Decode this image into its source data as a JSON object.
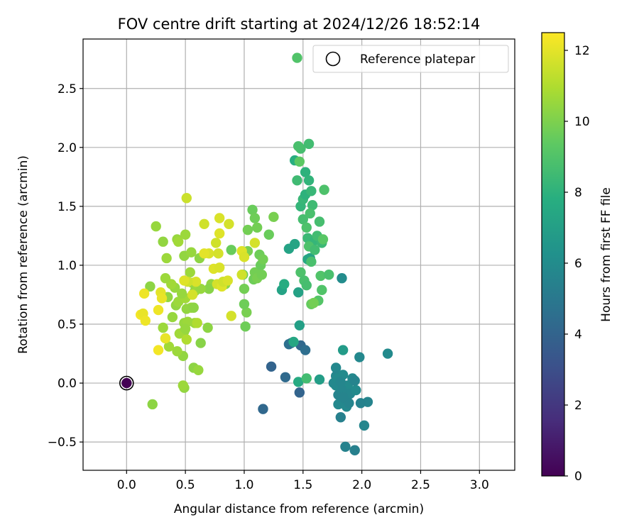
{
  "chart_data": {
    "type": "scatter",
    "title": "FOV centre drift starting at 2024/12/26 18:52:14",
    "xlabel": "Angular distance from reference (arcmin)",
    "ylabel": "Rotation from reference (arcmin)",
    "xlim": [
      -0.37,
      3.3
    ],
    "ylim": [
      -0.74,
      2.92
    ],
    "xticks": [
      "0.0",
      "0.5",
      "1.0",
      "1.5",
      "2.0",
      "2.5",
      "3.0"
    ],
    "xtick_values": [
      0.0,
      0.5,
      1.0,
      1.5,
      2.0,
      2.5,
      3.0
    ],
    "yticks": [
      "−0.5",
      "0.0",
      "0.5",
      "1.0",
      "1.5",
      "2.0",
      "2.5"
    ],
    "ytick_values": [
      -0.5,
      0.0,
      0.5,
      1.0,
      1.5,
      2.0,
      2.5
    ],
    "grid": true,
    "legend": {
      "placement": "top-right",
      "entries": [
        "Reference platepar"
      ]
    },
    "colormap": "viridis",
    "colorbar": {
      "label": "Hours from first FF file",
      "range": [
        0,
        12.5
      ],
      "ticks": [
        "0",
        "2",
        "4",
        "6",
        "8",
        "10",
        "12"
      ],
      "tick_values": [
        0,
        2,
        4,
        6,
        8,
        10,
        12
      ]
    },
    "reference_point": {
      "x": 0.0,
      "y": 0.0
    },
    "points": [
      {
        "x": 1.16,
        "y": -0.22,
        "h": 4.2
      },
      {
        "x": 1.23,
        "y": 0.14,
        "h": 4.0
      },
      {
        "x": 1.35,
        "y": 0.05,
        "h": 4.3
      },
      {
        "x": 1.47,
        "y": -0.08,
        "h": 4.0
      },
      {
        "x": 1.4,
        "y": 0.34,
        "h": 4.4
      },
      {
        "x": 1.48,
        "y": 0.32,
        "h": 4.2
      },
      {
        "x": 1.52,
        "y": 0.28,
        "h": 4.5
      },
      {
        "x": 1.38,
        "y": 0.33,
        "h": 4.6
      },
      {
        "x": 1.86,
        "y": -0.54,
        "h": 5.5
      },
      {
        "x": 1.94,
        "y": -0.57,
        "h": 5.4
      },
      {
        "x": 2.02,
        "y": -0.36,
        "h": 5.7
      },
      {
        "x": 1.98,
        "y": 0.22,
        "h": 5.8
      },
      {
        "x": 2.22,
        "y": 0.25,
        "h": 5.9
      },
      {
        "x": 2.05,
        "y": -0.16,
        "h": 5.6
      },
      {
        "x": 1.99,
        "y": -0.17,
        "h": 5.5
      },
      {
        "x": 1.82,
        "y": -0.29,
        "h": 5.4
      },
      {
        "x": 1.78,
        "y": 0.13,
        "h": 5.8
      },
      {
        "x": 1.78,
        "y": 0.06,
        "h": 5.7
      },
      {
        "x": 1.78,
        "y": -0.02,
        "h": 5.9
      },
      {
        "x": 1.8,
        "y": -0.1,
        "h": 5.6
      },
      {
        "x": 1.8,
        "y": -0.18,
        "h": 5.8
      },
      {
        "x": 1.84,
        "y": 0.07,
        "h": 5.9
      },
      {
        "x": 1.85,
        "y": -0.05,
        "h": 5.7
      },
      {
        "x": 1.86,
        "y": -0.14,
        "h": 5.6
      },
      {
        "x": 1.87,
        "y": -0.2,
        "h": 5.8
      },
      {
        "x": 1.88,
        "y": -0.02,
        "h": 5.9
      },
      {
        "x": 1.9,
        "y": -0.09,
        "h": 5.7
      },
      {
        "x": 1.92,
        "y": 0.04,
        "h": 5.8
      },
      {
        "x": 1.94,
        "y": 0.02,
        "h": 5.6
      },
      {
        "x": 1.95,
        "y": -0.06,
        "h": 5.9
      },
      {
        "x": 1.83,
        "y": -0.06,
        "h": 5.7
      },
      {
        "x": 1.89,
        "y": -0.17,
        "h": 5.6
      },
      {
        "x": 1.76,
        "y": 0.0,
        "h": 5.8
      },
      {
        "x": 1.79,
        "y": 0.04,
        "h": 5.9
      },
      {
        "x": 1.82,
        "y": 0.01,
        "h": 5.7
      },
      {
        "x": 1.84,
        "y": -0.12,
        "h": 5.6
      },
      {
        "x": 1.83,
        "y": 0.89,
        "h": 6.0
      },
      {
        "x": 1.84,
        "y": 0.28,
        "h": 6.8
      },
      {
        "x": 1.64,
        "y": 0.03,
        "h": 6.9
      },
      {
        "x": 1.47,
        "y": 0.49,
        "h": 7.0
      },
      {
        "x": 1.32,
        "y": 0.79,
        "h": 7.2
      },
      {
        "x": 1.46,
        "y": 0.77,
        "h": 7.1
      },
      {
        "x": 1.43,
        "y": 1.18,
        "h": 7.3
      },
      {
        "x": 1.38,
        "y": 1.14,
        "h": 7.2
      },
      {
        "x": 1.54,
        "y": 1.05,
        "h": 7.5
      },
      {
        "x": 1.56,
        "y": 1.06,
        "h": 7.3
      },
      {
        "x": 1.42,
        "y": 0.35,
        "h": 7.4
      },
      {
        "x": 1.46,
        "y": 0.01,
        "h": 7.6
      },
      {
        "x": 1.43,
        "y": 1.89,
        "h": 7.8
      },
      {
        "x": 1.34,
        "y": 0.84,
        "h": 7.7
      },
      {
        "x": 1.52,
        "y": 1.79,
        "h": 8.0
      },
      {
        "x": 1.55,
        "y": 1.72,
        "h": 8.1
      },
      {
        "x": 1.48,
        "y": 1.5,
        "h": 8.2
      },
      {
        "x": 1.5,
        "y": 1.56,
        "h": 8.3
      },
      {
        "x": 1.52,
        "y": 1.6,
        "h": 8.0
      },
      {
        "x": 1.54,
        "y": 1.23,
        "h": 8.4
      },
      {
        "x": 1.57,
        "y": 1.63,
        "h": 8.3
      },
      {
        "x": 1.58,
        "y": 1.51,
        "h": 8.5
      },
      {
        "x": 1.6,
        "y": 1.21,
        "h": 8.2
      },
      {
        "x": 1.62,
        "y": 1.25,
        "h": 8.6
      },
      {
        "x": 1.66,
        "y": 1.19,
        "h": 8.4
      },
      {
        "x": 1.48,
        "y": 1.99,
        "h": 8.7
      },
      {
        "x": 1.46,
        "y": 2.01,
        "h": 8.8
      },
      {
        "x": 1.55,
        "y": 2.03,
        "h": 8.6
      },
      {
        "x": 1.45,
        "y": 1.72,
        "h": 8.5
      },
      {
        "x": 1.5,
        "y": 1.39,
        "h": 8.7
      },
      {
        "x": 1.53,
        "y": 1.32,
        "h": 8.9
      },
      {
        "x": 1.56,
        "y": 1.44,
        "h": 8.8
      },
      {
        "x": 1.64,
        "y": 1.37,
        "h": 8.7
      },
      {
        "x": 1.68,
        "y": 1.64,
        "h": 8.9
      },
      {
        "x": 1.65,
        "y": 0.91,
        "h": 9.0
      },
      {
        "x": 1.72,
        "y": 0.92,
        "h": 8.8
      },
      {
        "x": 1.48,
        "y": 0.94,
        "h": 8.9
      },
      {
        "x": 1.51,
        "y": 0.87,
        "h": 8.8
      },
      {
        "x": 1.53,
        "y": 0.83,
        "h": 8.7
      },
      {
        "x": 1.55,
        "y": 1.16,
        "h": 8.9
      },
      {
        "x": 1.57,
        "y": 1.03,
        "h": 8.8
      },
      {
        "x": 1.6,
        "y": 1.13,
        "h": 8.6
      },
      {
        "x": 1.53,
        "y": 0.04,
        "h": 8.6
      },
      {
        "x": 1.63,
        "y": 0.7,
        "h": 9.1
      },
      {
        "x": 1.66,
        "y": 0.79,
        "h": 9.0
      },
      {
        "x": 1.45,
        "y": 2.76,
        "h": 9.0
      },
      {
        "x": 1.67,
        "y": 1.22,
        "h": 9.2
      },
      {
        "x": 1.57,
        "y": 0.67,
        "h": 9.5
      },
      {
        "x": 1.59,
        "y": 0.68,
        "h": 9.8
      },
      {
        "x": 1.47,
        "y": 1.88,
        "h": 9.3
      },
      {
        "x": 1.07,
        "y": 1.47,
        "h": 9.6
      },
      {
        "x": 1.09,
        "y": 1.4,
        "h": 9.7
      },
      {
        "x": 1.11,
        "y": 1.32,
        "h": 9.8
      },
      {
        "x": 1.25,
        "y": 1.41,
        "h": 9.9
      },
      {
        "x": 1.21,
        "y": 1.26,
        "h": 9.6
      },
      {
        "x": 1.03,
        "y": 1.3,
        "h": 9.8
      },
      {
        "x": 1.02,
        "y": 0.6,
        "h": 9.9
      },
      {
        "x": 1.0,
        "y": 0.67,
        "h": 9.7
      },
      {
        "x": 1.0,
        "y": 0.8,
        "h": 9.8
      },
      {
        "x": 0.99,
        "y": 0.92,
        "h": 9.6
      },
      {
        "x": 1.08,
        "y": 0.88,
        "h": 9.7
      },
      {
        "x": 1.09,
        "y": 0.94,
        "h": 9.8
      },
      {
        "x": 1.11,
        "y": 0.89,
        "h": 9.9
      },
      {
        "x": 1.13,
        "y": 1.09,
        "h": 9.7
      },
      {
        "x": 1.14,
        "y": 1.0,
        "h": 9.6
      },
      {
        "x": 1.16,
        "y": 1.05,
        "h": 9.8
      },
      {
        "x": 1.03,
        "y": 1.12,
        "h": 9.9
      },
      {
        "x": 1.01,
        "y": 0.48,
        "h": 9.7
      },
      {
        "x": 1.15,
        "y": 0.92,
        "h": 9.8
      },
      {
        "x": 0.89,
        "y": 1.13,
        "h": 9.6
      },
      {
        "x": 0.84,
        "y": 0.84,
        "h": 10.2
      },
      {
        "x": 0.72,
        "y": 0.84,
        "h": 10.4
      },
      {
        "x": 0.7,
        "y": 0.8,
        "h": 10.2
      },
      {
        "x": 0.69,
        "y": 0.47,
        "h": 10.3
      },
      {
        "x": 0.63,
        "y": 0.34,
        "h": 10.2
      },
      {
        "x": 0.57,
        "y": 0.13,
        "h": 10.3
      },
      {
        "x": 0.61,
        "y": 0.11,
        "h": 10.5
      },
      {
        "x": 0.49,
        "y": -0.04,
        "h": 10.4
      },
      {
        "x": 0.48,
        "y": -0.02,
        "h": 10.6
      },
      {
        "x": 0.22,
        "y": -0.18,
        "h": 10.3
      },
      {
        "x": 0.48,
        "y": 0.23,
        "h": 10.4
      },
      {
        "x": 0.43,
        "y": 0.27,
        "h": 10.6
      },
      {
        "x": 0.36,
        "y": 0.31,
        "h": 10.7
      },
      {
        "x": 0.33,
        "y": 0.38,
        "h": 10.5
      },
      {
        "x": 0.31,
        "y": 0.47,
        "h": 10.6
      },
      {
        "x": 0.39,
        "y": 0.56,
        "h": 10.5
      },
      {
        "x": 0.42,
        "y": 0.66,
        "h": 10.4
      },
      {
        "x": 0.44,
        "y": 0.69,
        "h": 10.6
      },
      {
        "x": 0.41,
        "y": 0.81,
        "h": 10.5
      },
      {
        "x": 0.38,
        "y": 0.84,
        "h": 10.7
      },
      {
        "x": 0.35,
        "y": 0.73,
        "h": 10.4
      },
      {
        "x": 0.33,
        "y": 0.89,
        "h": 10.6
      },
      {
        "x": 0.2,
        "y": 0.82,
        "h": 10.3
      },
      {
        "x": 0.25,
        "y": 1.33,
        "h": 10.5
      },
      {
        "x": 0.31,
        "y": 1.2,
        "h": 10.4
      },
      {
        "x": 0.34,
        "y": 1.06,
        "h": 10.6
      },
      {
        "x": 0.43,
        "y": 1.22,
        "h": 10.5
      },
      {
        "x": 0.44,
        "y": 1.2,
        "h": 10.7
      },
      {
        "x": 0.49,
        "y": 1.08,
        "h": 10.4
      },
      {
        "x": 0.5,
        "y": 1.26,
        "h": 10.6
      },
      {
        "x": 0.55,
        "y": 1.11,
        "h": 10.5
      },
      {
        "x": 0.62,
        "y": 1.06,
        "h": 10.3
      },
      {
        "x": 0.54,
        "y": 0.94,
        "h": 10.6
      },
      {
        "x": 0.56,
        "y": 0.85,
        "h": 10.5
      },
      {
        "x": 0.58,
        "y": 0.78,
        "h": 10.4
      },
      {
        "x": 0.6,
        "y": 0.8,
        "h": 10.6
      },
      {
        "x": 0.63,
        "y": 0.8,
        "h": 10.5
      },
      {
        "x": 0.5,
        "y": 0.72,
        "h": 10.7
      },
      {
        "x": 0.47,
        "y": 0.76,
        "h": 10.5
      },
      {
        "x": 0.55,
        "y": 0.64,
        "h": 10.6
      },
      {
        "x": 0.51,
        "y": 0.63,
        "h": 10.4
      },
      {
        "x": 0.57,
        "y": 0.64,
        "h": 10.3
      },
      {
        "x": 0.49,
        "y": 0.51,
        "h": 10.5
      },
      {
        "x": 0.52,
        "y": 0.52,
        "h": 10.6
      },
      {
        "x": 0.49,
        "y": 0.44,
        "h": 10.4
      },
      {
        "x": 0.45,
        "y": 0.42,
        "h": 10.7
      },
      {
        "x": 0.5,
        "y": 0.46,
        "h": 10.5
      },
      {
        "x": 0.58,
        "y": 0.51,
        "h": 10.6
      },
      {
        "x": 0.6,
        "y": 0.51,
        "h": 11.0
      },
      {
        "x": 0.51,
        "y": 0.37,
        "h": 11.0
      },
      {
        "x": 0.51,
        "y": 1.57,
        "h": 11.5
      },
      {
        "x": 0.66,
        "y": 1.35,
        "h": 11.6
      },
      {
        "x": 0.79,
        "y": 1.4,
        "h": 11.8
      },
      {
        "x": 0.87,
        "y": 1.35,
        "h": 11.7
      },
      {
        "x": 0.79,
        "y": 1.27,
        "h": 11.9
      },
      {
        "x": 0.76,
        "y": 1.19,
        "h": 11.6
      },
      {
        "x": 0.7,
        "y": 1.1,
        "h": 11.8
      },
      {
        "x": 0.78,
        "y": 1.1,
        "h": 11.7
      },
      {
        "x": 0.74,
        "y": 0.97,
        "h": 11.9
      },
      {
        "x": 0.79,
        "y": 0.98,
        "h": 11.8
      },
      {
        "x": 0.77,
        "y": 0.84,
        "h": 11.7
      },
      {
        "x": 0.81,
        "y": 0.82,
        "h": 11.9
      },
      {
        "x": 0.82,
        "y": 0.86,
        "h": 11.6
      },
      {
        "x": 0.86,
        "y": 0.87,
        "h": 11.8
      },
      {
        "x": 0.89,
        "y": 0.57,
        "h": 11.7
      },
      {
        "x": 0.98,
        "y": 1.12,
        "h": 11.9
      },
      {
        "x": 1.0,
        "y": 1.07,
        "h": 11.8
      },
      {
        "x": 1.09,
        "y": 1.19,
        "h": 11.7
      },
      {
        "x": 0.98,
        "y": 0.92,
        "h": 11.6
      },
      {
        "x": 0.59,
        "y": 0.86,
        "h": 11.8
      },
      {
        "x": 0.56,
        "y": 0.75,
        "h": 11.7
      },
      {
        "x": 0.52,
        "y": 0.86,
        "h": 11.6
      },
      {
        "x": 0.49,
        "y": 0.87,
        "h": 11.9
      },
      {
        "x": 0.29,
        "y": 0.77,
        "h": 12.0
      },
      {
        "x": 0.3,
        "y": 0.72,
        "h": 12.1
      },
      {
        "x": 0.27,
        "y": 0.62,
        "h": 12.2
      },
      {
        "x": 0.27,
        "y": 0.28,
        "h": 12.3
      },
      {
        "x": 0.33,
        "y": 0.38,
        "h": 12.1
      },
      {
        "x": 0.15,
        "y": 0.76,
        "h": 12.2
      },
      {
        "x": 0.12,
        "y": 0.58,
        "h": 12.3
      },
      {
        "x": 0.14,
        "y": 0.59,
        "h": 12.1
      },
      {
        "x": 0.16,
        "y": 0.53,
        "h": 12.2
      },
      {
        "x": 0.66,
        "y": 1.1,
        "h": 12.0
      }
    ]
  }
}
